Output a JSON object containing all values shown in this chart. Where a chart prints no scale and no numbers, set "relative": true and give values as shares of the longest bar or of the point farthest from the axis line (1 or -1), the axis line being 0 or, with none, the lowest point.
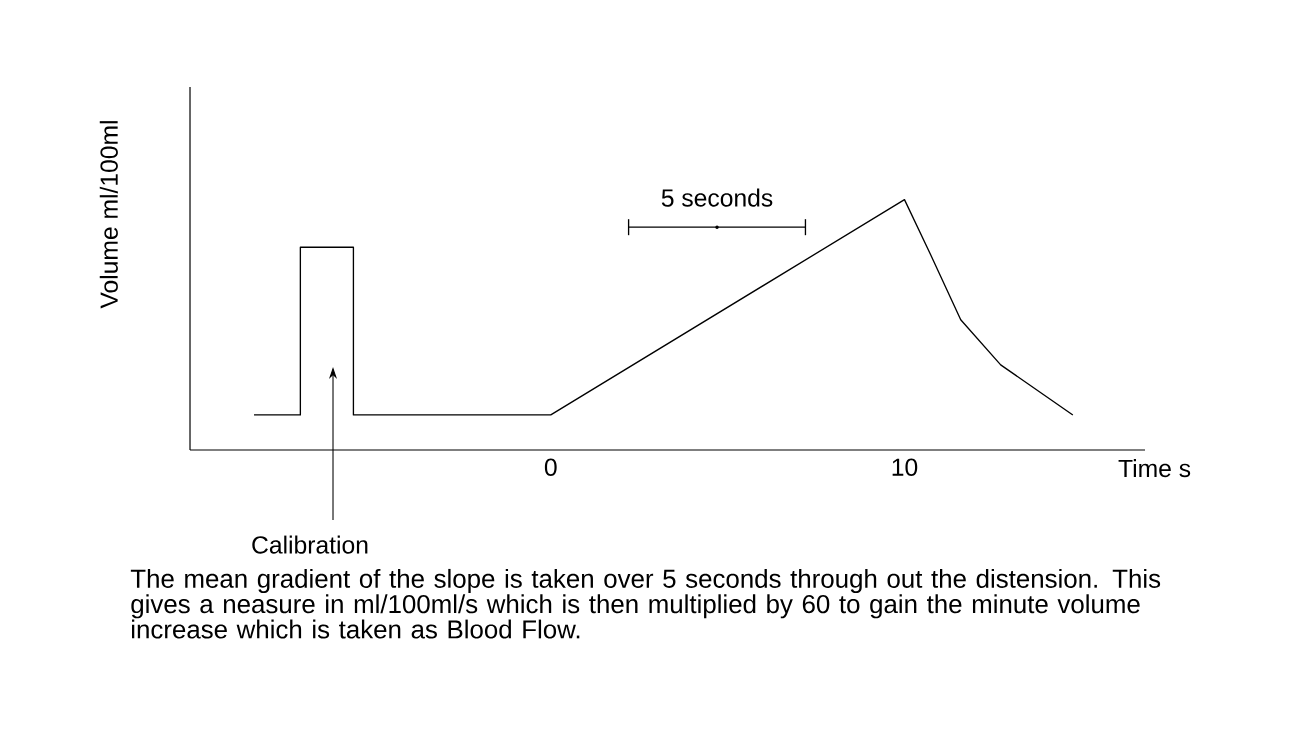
{
  "chart_data": {
    "type": "line",
    "relative": true,
    "xlabel": "Time s",
    "ylabel": "Volume ml/100ml",
    "xlim": [
      -10.2,
      16.8
    ],
    "xticks": [
      0,
      10
    ],
    "line_style": "solid",
    "series": [
      {
        "x": [
          -8.39,
          -7.08,
          -7.08,
          -5.58,
          -5.58,
          0,
          10,
          10.74,
          11.59,
          12.72,
          14.76
        ],
        "values": [
          0.14,
          0.14,
          0.81,
          0.81,
          0.14,
          0.14,
          1,
          0.78,
          0.52,
          0.34,
          0.14
        ],
        "color": "#000000"
      },
      {
        "x": [
          4.7
        ],
        "values": [
          0.89
        ],
        "xerrors": [
          [
            2.2,
            7.2
          ]
        ],
        "marker": "circle",
        "color": "#000000"
      }
    ],
    "annotations": [
      {
        "text": "5 seconds",
        "x": 4.7,
        "y": 0.89
      },
      "Calibration",
      "The mean gradient of the slope is taken over 5 seconds through out the distension. This gives a neasure in ml/100ml/s which is then multiplied by 60 to gain the minute volume increase which is taken as Blood Flow."
    ]
  }
}
